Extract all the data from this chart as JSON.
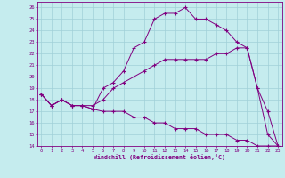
{
  "xlabel": "Windchill (Refroidissement éolien,°C)",
  "background_color": "#c5ecee",
  "grid_color": "#a0d0d8",
  "line_color": "#800080",
  "xlim": [
    -0.4,
    23.4
  ],
  "ylim": [
    14,
    26.5
  ],
  "yticks": [
    14,
    15,
    16,
    17,
    18,
    19,
    20,
    21,
    22,
    23,
    24,
    25,
    26
  ],
  "xticks": [
    0,
    1,
    2,
    3,
    4,
    5,
    6,
    7,
    8,
    9,
    10,
    11,
    12,
    13,
    14,
    15,
    16,
    17,
    18,
    19,
    20,
    21,
    22,
    23
  ],
  "line1_x": [
    0,
    1,
    2,
    3,
    4,
    5,
    6,
    7,
    8,
    9,
    10,
    11,
    12,
    13,
    14,
    15,
    16,
    17,
    18,
    19,
    20,
    21,
    22,
    23
  ],
  "line1_y": [
    18.5,
    17.5,
    18.0,
    17.5,
    17.5,
    17.2,
    19.0,
    19.5,
    20.5,
    22.5,
    23.0,
    25.0,
    25.5,
    25.5,
    26.0,
    25.0,
    25.0,
    24.5,
    24.0,
    23.0,
    22.5,
    19.0,
    17.0,
    14.0
  ],
  "line2_x": [
    0,
    1,
    2,
    3,
    4,
    5,
    6,
    7,
    8,
    9,
    10,
    11,
    12,
    13,
    14,
    15,
    16,
    17,
    18,
    19,
    20,
    21,
    22,
    23
  ],
  "line2_y": [
    18.5,
    17.5,
    18.0,
    17.5,
    17.5,
    17.5,
    18.0,
    19.0,
    19.5,
    20.0,
    20.5,
    21.0,
    21.5,
    21.5,
    21.5,
    21.5,
    21.5,
    22.0,
    22.0,
    22.5,
    22.5,
    19.0,
    15.0,
    14.0
  ],
  "line3_x": [
    0,
    1,
    2,
    3,
    4,
    5,
    6,
    7,
    8,
    9,
    10,
    11,
    12,
    13,
    14,
    15,
    16,
    17,
    18,
    19,
    20,
    21,
    22,
    23
  ],
  "line3_y": [
    18.5,
    17.5,
    18.0,
    17.5,
    17.5,
    17.2,
    17.0,
    17.0,
    17.0,
    16.5,
    16.5,
    16.0,
    16.0,
    15.5,
    15.5,
    15.5,
    15.0,
    15.0,
    15.0,
    14.5,
    14.5,
    14.0,
    14.0,
    14.0
  ]
}
